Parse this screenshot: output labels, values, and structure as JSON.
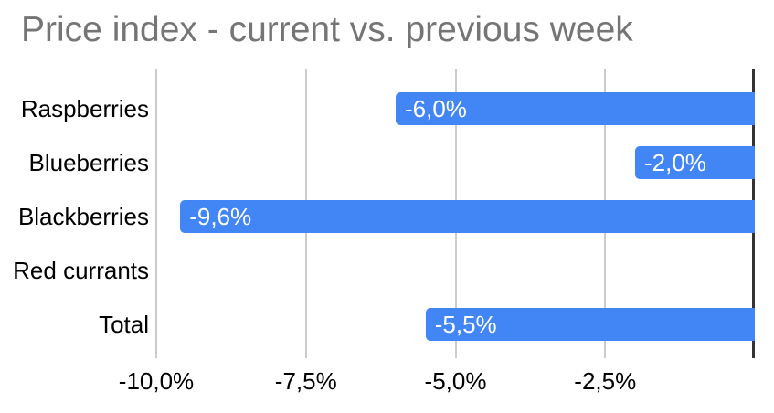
{
  "chart_data": {
    "type": "bar",
    "orientation": "horizontal",
    "title": "Price index - current vs. previous week",
    "categories": [
      "Raspberries",
      "Blueberries",
      "Blackberries",
      "Red currants",
      "Total"
    ],
    "values": [
      -6.0,
      -2.0,
      -9.6,
      0.0,
      -5.5
    ],
    "value_labels": [
      "-6,0%",
      "-2,0%",
      "-9,6%",
      "",
      "-5,5%"
    ],
    "xlim": [
      -10,
      0
    ],
    "xticks": [
      {
        "value": -10,
        "label": "-10,0%"
      },
      {
        "value": -7.5,
        "label": "-7,5%"
      },
      {
        "value": -5,
        "label": "-5,0%"
      },
      {
        "value": -2.5,
        "label": "-2,5%"
      }
    ],
    "grid": true,
    "legend": "none",
    "colors": {
      "bar": "#4285f4",
      "bar_label": "#ffffff",
      "title": "#757575",
      "axis_label": "#000000",
      "gridline": "#cccccc",
      "zero_axis": "#333333",
      "background": "#ffffff"
    }
  }
}
